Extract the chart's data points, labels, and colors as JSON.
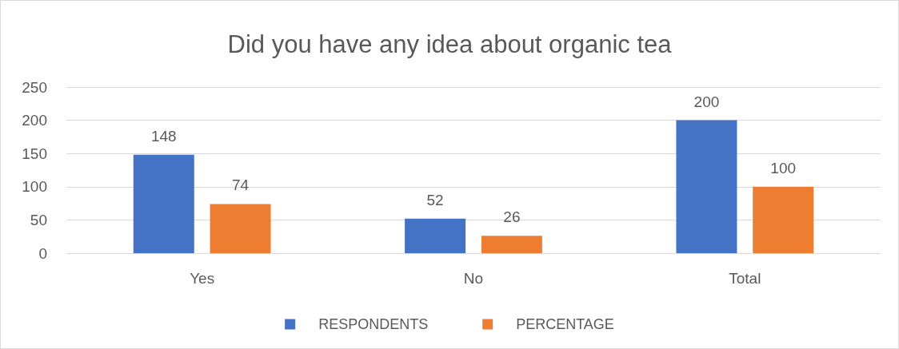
{
  "chart_data": {
    "type": "bar",
    "title": "Did you have any idea about organic tea",
    "categories": [
      "Yes",
      "No",
      "Total"
    ],
    "series": [
      {
        "name": "RESPONDENTS",
        "color": "#4472c4",
        "values": [
          148,
          52,
          200
        ]
      },
      {
        "name": "PERCENTAGE",
        "color": "#ed7d31",
        "values": [
          74,
          26,
          100
        ]
      }
    ],
    "ylim": [
      0,
      250
    ],
    "yticks": [
      0,
      50,
      100,
      150,
      200,
      250
    ],
    "grid": "y",
    "legend": "bottom",
    "data_labels": true
  }
}
